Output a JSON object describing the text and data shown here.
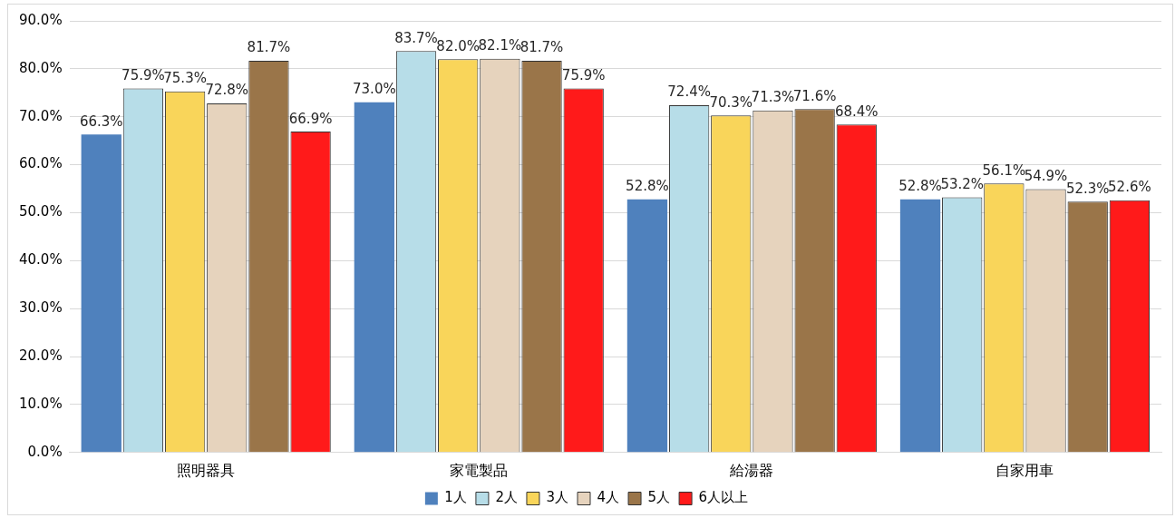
{
  "chart_data": {
    "type": "bar",
    "categories": [
      "照明器具",
      "家電製品",
      "給湯器",
      "自家用車"
    ],
    "series": [
      {
        "name": "1人",
        "color": "#4f81bd",
        "values": [
          66.3,
          73.0,
          52.8,
          52.8
        ],
        "value_labels": [
          "66.3%",
          "73.0%",
          "52.8%",
          "52.8%"
        ]
      },
      {
        "name": "2人",
        "color": "#b7dde8",
        "values": [
          75.9,
          83.7,
          72.4,
          53.2
        ],
        "value_labels": [
          "75.9%",
          "83.7%",
          "72.4%",
          "53.2%"
        ]
      },
      {
        "name": "3人",
        "color": "#f9d55a",
        "values": [
          75.3,
          82.0,
          70.3,
          56.1
        ],
        "value_labels": [
          "75.3%",
          "82.0%",
          "70.3%",
          "56.1%"
        ]
      },
      {
        "name": "4人",
        "color": "#e6d3bd",
        "values": [
          72.8,
          82.1,
          71.3,
          54.9
        ],
        "value_labels": [
          "72.8%",
          "82.1%",
          "71.3%",
          "54.9%"
        ]
      },
      {
        "name": "5人",
        "color": "#9a7549",
        "values": [
          81.7,
          81.7,
          71.6,
          52.3
        ],
        "value_labels": [
          "81.7%",
          "81.7%",
          "71.6%",
          "52.3%"
        ]
      },
      {
        "name": "6人以上",
        "color": "#ff1a1a",
        "values": [
          66.9,
          75.9,
          68.4,
          52.6
        ],
        "value_labels": [
          "66.9%",
          "75.9%",
          "68.4%",
          "52.6%"
        ]
      }
    ],
    "ylim": [
      0,
      90
    ],
    "yticks": [
      {
        "value": 0,
        "label": "0.0%"
      },
      {
        "value": 10,
        "label": "10.0%"
      },
      {
        "value": 20,
        "label": "20.0%"
      },
      {
        "value": 30,
        "label": "30.0%"
      },
      {
        "value": 40,
        "label": "40.0%"
      },
      {
        "value": 50,
        "label": "50.0%"
      },
      {
        "value": 60,
        "label": "60.0%"
      },
      {
        "value": 70,
        "label": "70.0%"
      },
      {
        "value": 80,
        "label": "80.0%"
      },
      {
        "value": 90,
        "label": "90.0%"
      }
    ],
    "grid": "y",
    "legend": "bottom"
  }
}
